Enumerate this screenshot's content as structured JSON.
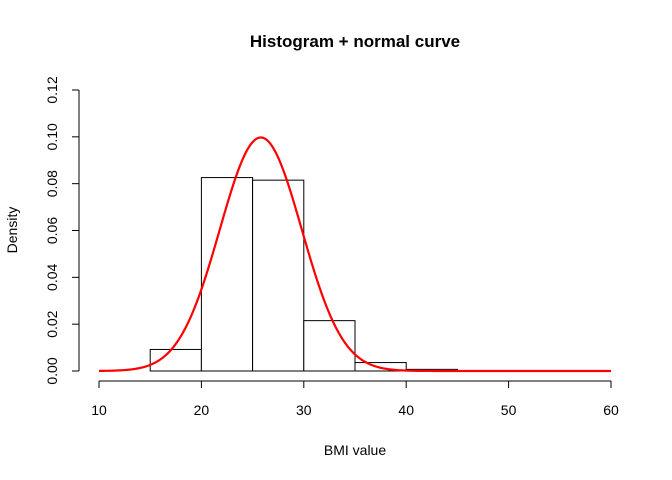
{
  "chart_data": {
    "type": "bar",
    "title": "Histogram + normal curve",
    "xlabel": "BMI value",
    "ylabel": "Density",
    "xlim": [
      10,
      60
    ],
    "ylim": [
      0,
      0.12
    ],
    "x_ticks": [
      "10",
      "20",
      "30",
      "40",
      "50",
      "60"
    ],
    "y_ticks": [
      "0.00",
      "0.02",
      "0.04",
      "0.06",
      "0.08",
      "0.10",
      "0.12"
    ],
    "bins": [
      {
        "start": 15,
        "end": 20,
        "density": 0.0092
      },
      {
        "start": 20,
        "end": 25,
        "density": 0.0826
      },
      {
        "start": 25,
        "end": 30,
        "density": 0.0815
      },
      {
        "start": 30,
        "end": 35,
        "density": 0.0215
      },
      {
        "start": 35,
        "end": 40,
        "density": 0.0036
      },
      {
        "start": 40,
        "end": 45,
        "density": 0.0007
      },
      {
        "start": 45,
        "end": 50,
        "density": 0.0002
      },
      {
        "start": 50,
        "end": 55,
        "density": 0.0001
      }
    ],
    "normal_curve": {
      "mean": 25.8,
      "sd": 4.0,
      "color": "#ff0000"
    },
    "bar_fill": "#ffffff",
    "bar_stroke": "#000000",
    "grid": false
  }
}
